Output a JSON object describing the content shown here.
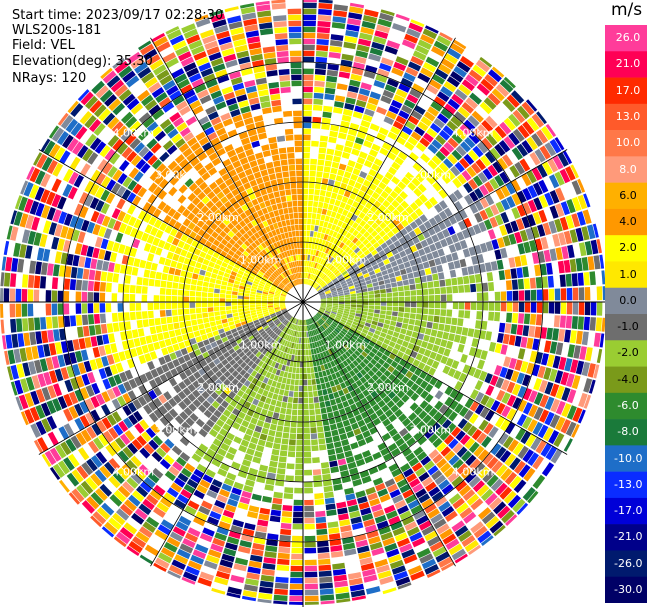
{
  "header": {
    "start_time": "Start time: 2023/09/17 02:28:30",
    "instrument": "WLS200s-181",
    "field": "Field: VEL",
    "elevation": "Elevation(deg): 35.30",
    "nrays": "NRays: 120"
  },
  "chart_data": {
    "type": "heatmap",
    "projection": "polar PPI (plan position indicator)",
    "field": "VEL",
    "units": "m/s",
    "n_rays": 120,
    "elevation_deg": 35.3,
    "range_ring_labels": [
      "1.00km",
      "2.00km",
      "3.00km",
      "4.00km"
    ],
    "range_rings_km": [
      1,
      2,
      3,
      4
    ],
    "colorbar": {
      "title": "m/s",
      "ticks": [
        "26.0",
        "21.0",
        "17.0",
        "13.0",
        "10.0",
        "8.0",
        "6.0",
        "4.0",
        "2.0",
        "1.0",
        "0.0",
        "-1.0",
        "-2.0",
        "-4.0",
        "-6.0",
        "-8.0",
        "-10.0",
        "-13.0",
        "-17.0",
        "-21.0",
        "-26.0",
        "-30.0"
      ],
      "colors": [
        "#ff3c9a",
        "#ff0055",
        "#ff2a00",
        "#ff5a2a",
        "#ff7848",
        "#ff9a7a",
        "#ffb000",
        "#ff9800",
        "#ffff00",
        "#ffe800",
        "#808a9a",
        "#6e6e6e",
        "#9acd32",
        "#7a9a1a",
        "#2e8b2e",
        "#1a7a3a",
        "#1e6ec8",
        "#0a2cff",
        "#0000d8",
        "#00008a",
        "#001a6e",
        "#000066"
      ]
    },
    "sectors": [
      {
        "azimuth_range_deg": [
          300,
          360
        ],
        "dominant_value": 4.0
      },
      {
        "azimuth_range_deg": [
          0,
          55
        ],
        "dominant_value": 2.0
      },
      {
        "azimuth_range_deg": [
          55,
          80
        ],
        "dominant_value": 0.0
      },
      {
        "azimuth_range_deg": [
          80,
          120
        ],
        "dominant_value": -2.0
      },
      {
        "azimuth_range_deg": [
          120,
          170
        ],
        "dominant_value": -6.0
      },
      {
        "azimuth_range_deg": [
          170,
          215
        ],
        "dominant_value": -2.0
      },
      {
        "azimuth_range_deg": [
          215,
          250
        ],
        "dominant_value": -1.0
      },
      {
        "azimuth_range_deg": [
          250,
          300
        ],
        "dominant_value": 2.0
      }
    ],
    "noise_beyond_km": 3.3
  }
}
